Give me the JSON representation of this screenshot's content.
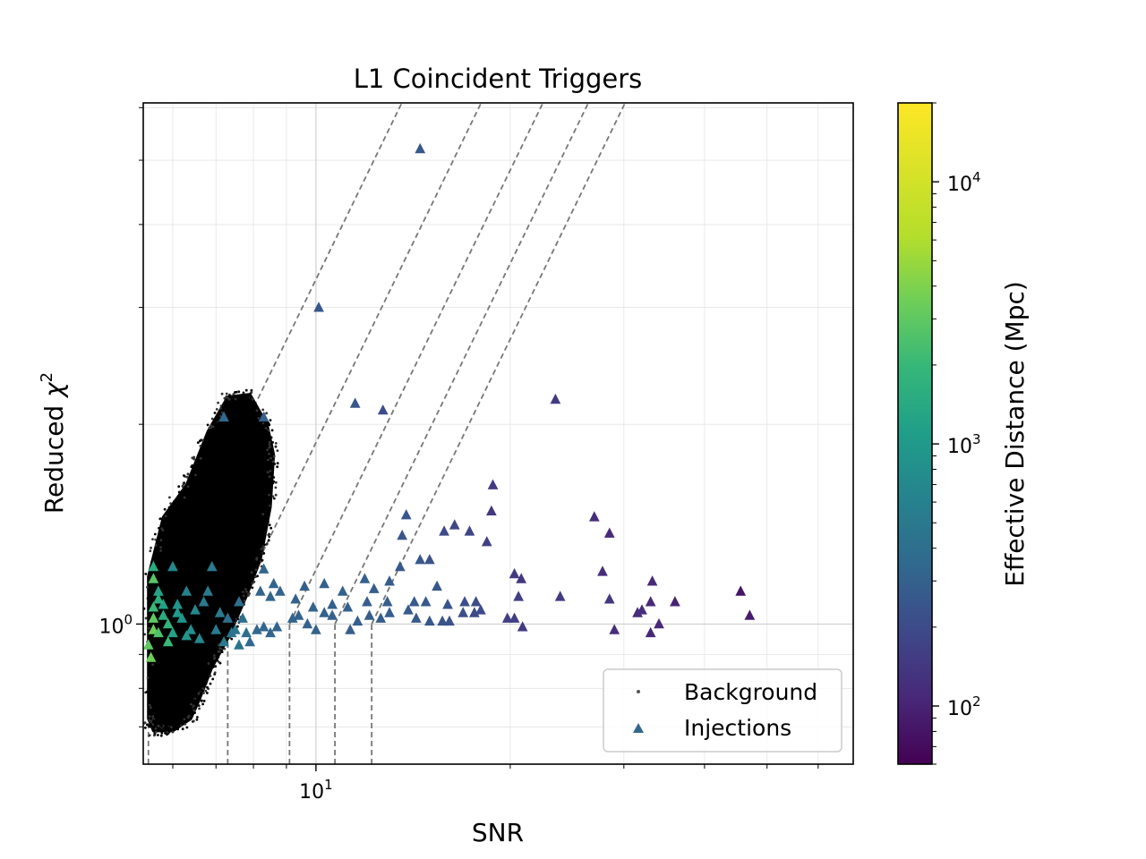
{
  "chart_data": {
    "type": "scatter",
    "title": "L1 Coincident Triggers",
    "xlabel": "SNR",
    "ylabel_main": "Reduced ",
    "ylabel_symbol": "χ",
    "ylabel_exp": "2",
    "x_scale": "log",
    "y_scale": "log",
    "xlim": [
      5.4,
      68
    ],
    "ylim": [
      0.615,
      6.1
    ],
    "xticks": [
      {
        "value": 10,
        "base": "10",
        "exp": "1"
      }
    ],
    "yticks": [
      {
        "value": 1,
        "base": "10",
        "exp": "0"
      }
    ],
    "grid": true,
    "legend": {
      "placement": "lower-right",
      "entries": [
        "Background",
        "Injections"
      ]
    },
    "colorbar": {
      "label": "Effective Distance (Mpc)",
      "scale": "log",
      "colormap": "viridis",
      "range": [
        60,
        20000
      ],
      "ticks": [
        {
          "value": 100,
          "base": "10",
          "exp": "2"
        },
        {
          "value": 1000,
          "base": "10",
          "exp": "3"
        },
        {
          "value": 10000,
          "base": "10",
          "exp": "4"
        }
      ]
    },
    "background_region": {
      "description_points": [
        [
          5.5,
          0.72
        ],
        [
          5.5,
          1.18
        ],
        [
          5.8,
          1.45
        ],
        [
          6.3,
          1.62
        ],
        [
          6.8,
          1.95
        ],
        [
          7.3,
          2.2
        ],
        [
          7.9,
          2.22
        ],
        [
          8.4,
          2.0
        ],
        [
          8.6,
          1.8
        ],
        [
          8.5,
          1.5
        ],
        [
          8.2,
          1.25
        ],
        [
          7.8,
          1.1
        ],
        [
          7.3,
          0.95
        ],
        [
          6.9,
          0.86
        ],
        [
          6.6,
          0.77
        ],
        [
          6.4,
          0.72
        ],
        [
          6.0,
          0.69
        ],
        [
          5.6,
          0.69
        ]
      ]
    },
    "threshold_lines": [
      {
        "x0": 5.5,
        "y0": 1.0
      },
      {
        "x0": 7.3,
        "y0": 1.0
      },
      {
        "x0": 9.1,
        "y0": 1.0
      },
      {
        "x0": 10.7,
        "y0": 1.0
      },
      {
        "x0": 12.2,
        "y0": 1.0
      }
    ],
    "series": [
      {
        "name": "Injections",
        "points": [
          [
            14.5,
            5.2,
            250
          ],
          [
            10.1,
            3.0,
            250
          ],
          [
            7.2,
            2.05,
            350
          ],
          [
            8.3,
            2.05,
            300
          ],
          [
            11.5,
            2.15,
            250
          ],
          [
            12.7,
            2.1,
            200
          ],
          [
            23.5,
            2.18,
            150
          ],
          [
            18.8,
            1.62,
            150
          ],
          [
            18.7,
            1.48,
            140
          ],
          [
            27.0,
            1.45,
            120
          ],
          [
            28.5,
            1.37,
            110
          ],
          [
            13.8,
            1.46,
            250
          ],
          [
            15.8,
            1.38,
            200
          ],
          [
            16.4,
            1.41,
            180
          ],
          [
            17.3,
            1.38,
            180
          ],
          [
            18.4,
            1.33,
            160
          ],
          [
            13.6,
            1.36,
            250
          ],
          [
            14.5,
            1.25,
            260
          ],
          [
            13.5,
            1.22,
            260
          ],
          [
            15.0,
            1.25,
            230
          ],
          [
            20.3,
            1.19,
            150
          ],
          [
            20.8,
            1.17,
            140
          ],
          [
            27.8,
            1.2,
            120
          ],
          [
            33.2,
            1.16,
            110
          ],
          [
            11.9,
            1.17,
            300
          ],
          [
            13.0,
            1.16,
            280
          ],
          [
            9.6,
            1.14,
            300
          ],
          [
            10.3,
            1.15,
            300
          ],
          [
            11.0,
            1.12,
            300
          ],
          [
            12.3,
            1.13,
            280
          ],
          [
            15.4,
            1.14,
            250
          ],
          [
            20.6,
            1.1,
            160
          ],
          [
            23.9,
            1.1,
            150
          ],
          [
            28.5,
            1.09,
            140
          ],
          [
            33.0,
            1.08,
            110
          ],
          [
            36.0,
            1.08,
            100
          ],
          [
            45.5,
            1.12,
            80
          ],
          [
            32.0,
            1.05,
            120
          ],
          [
            31.5,
            1.04,
            120
          ],
          [
            47.0,
            1.03,
            90
          ],
          [
            12.0,
            1.08,
            280
          ],
          [
            12.9,
            1.08,
            280
          ],
          [
            14.2,
            1.08,
            270
          ],
          [
            14.8,
            1.08,
            260
          ],
          [
            16.0,
            1.07,
            240
          ],
          [
            17.0,
            1.08,
            220
          ],
          [
            17.7,
            1.08,
            200
          ],
          [
            10.6,
            1.07,
            300
          ],
          [
            11.2,
            1.06,
            300
          ],
          [
            9.3,
            1.09,
            300
          ],
          [
            9.9,
            1.06,
            320
          ],
          [
            13.9,
            1.05,
            270
          ],
          [
            13.0,
            1.04,
            280
          ],
          [
            16.9,
            1.04,
            220
          ],
          [
            17.6,
            1.04,
            200
          ],
          [
            18.0,
            1.05,
            200
          ],
          [
            20.3,
            1.02,
            160
          ],
          [
            14.3,
            1.02,
            270
          ],
          [
            15.0,
            1.01,
            250
          ],
          [
            15.7,
            1.01,
            240
          ],
          [
            16.1,
            1.01,
            230
          ],
          [
            19.8,
            1.02,
            160
          ],
          [
            20.9,
            0.99,
            150
          ],
          [
            12.1,
            1.03,
            280
          ],
          [
            12.6,
            1.02,
            280
          ],
          [
            11.6,
            1.01,
            290
          ],
          [
            10.6,
            1.03,
            300
          ],
          [
            10.3,
            1.04,
            300
          ],
          [
            9.4,
            1.03,
            310
          ],
          [
            9.2,
            1.02,
            320
          ],
          [
            9.7,
            1.0,
            310
          ],
          [
            10.0,
            0.98,
            310
          ],
          [
            11.3,
            0.98,
            290
          ],
          [
            8.7,
            0.99,
            320
          ],
          [
            8.3,
            0.99,
            330
          ],
          [
            8.1,
            0.98,
            340
          ],
          [
            8.5,
            0.97,
            330
          ],
          [
            7.9,
            0.94,
            350
          ],
          [
            29.0,
            0.98,
            120
          ],
          [
            33.0,
            0.97,
            110
          ],
          [
            34.0,
            1.0,
            110
          ],
          [
            8.8,
            1.12,
            320
          ],
          [
            8.5,
            1.1,
            330
          ],
          [
            8.2,
            1.12,
            330
          ],
          [
            8.6,
            1.15,
            320
          ],
          [
            8.3,
            1.21,
            330
          ],
          [
            6.0,
            1.22,
            700
          ],
          [
            5.6,
            1.22,
            1500
          ],
          [
            5.7,
            1.12,
            1200
          ],
          [
            6.3,
            1.12,
            600
          ],
          [
            6.8,
            1.12,
            500
          ],
          [
            6.9,
            1.22,
            500
          ],
          [
            6.7,
            1.08,
            500
          ],
          [
            5.6,
            1.06,
            2000
          ],
          [
            5.8,
            1.07,
            1200
          ],
          [
            6.1,
            1.07,
            900
          ],
          [
            5.6,
            1.02,
            3000
          ],
          [
            5.8,
            1.03,
            1500
          ],
          [
            6.2,
            1.02,
            900
          ],
          [
            7.3,
            1.02,
            400
          ],
          [
            7.7,
            1.02,
            400
          ],
          [
            5.6,
            0.98,
            3500
          ],
          [
            5.7,
            0.97,
            2500
          ],
          [
            6.0,
            0.97,
            1200
          ],
          [
            6.4,
            0.98,
            800
          ],
          [
            7.0,
            0.98,
            500
          ],
          [
            7.4,
            0.97,
            450
          ],
          [
            7.8,
            0.97,
            400
          ],
          [
            5.5,
            0.93,
            3000
          ],
          [
            5.9,
            0.94,
            2000
          ],
          [
            6.6,
            0.95,
            700
          ],
          [
            7.2,
            0.94,
            500
          ],
          [
            7.6,
            0.93,
            450
          ],
          [
            5.55,
            0.89,
            3500
          ],
          [
            7.5,
            0.98,
            450
          ],
          [
            5.6,
            1.17,
            2800
          ],
          [
            5.9,
            1.0,
            1800
          ],
          [
            6.5,
            1.05,
            700
          ],
          [
            7.1,
            1.04,
            500
          ],
          [
            6.3,
            0.96,
            900
          ],
          [
            5.7,
            1.09,
            1600
          ],
          [
            6.1,
            1.04,
            1000
          ],
          [
            7.6,
            1.08,
            420
          ]
        ]
      }
    ]
  }
}
